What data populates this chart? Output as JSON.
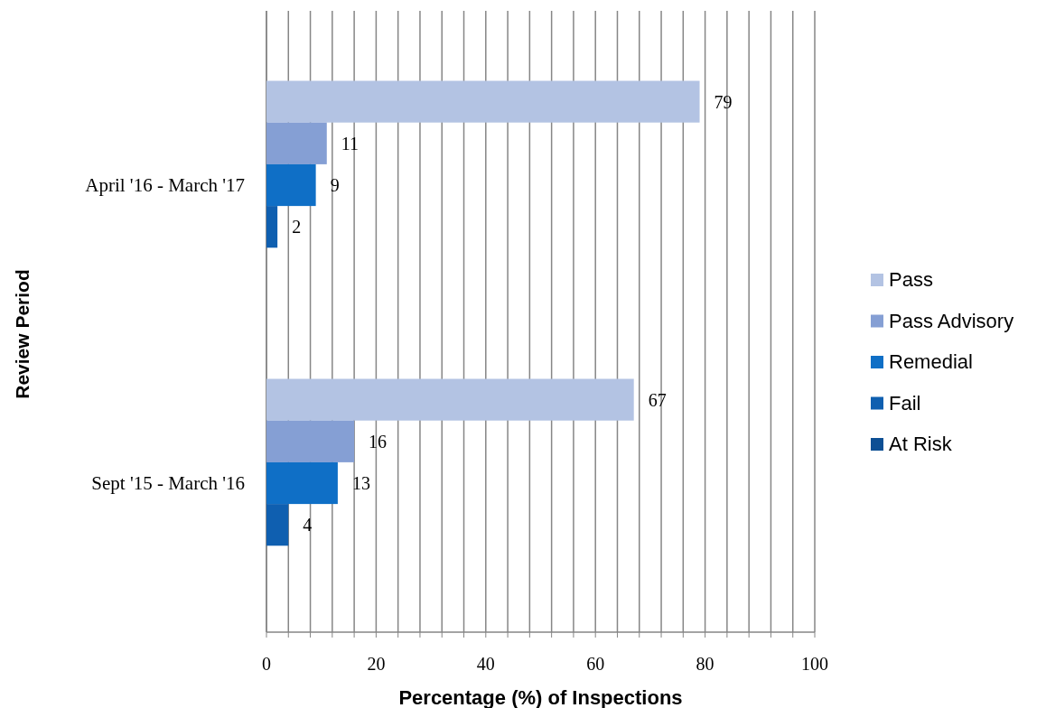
{
  "chart_data": {
    "type": "bar",
    "orientation": "horizontal",
    "xlabel": "Percentage (%) of Inspections",
    "ylabel": "Review Period",
    "categories": [
      "April '16 - March '17",
      "Sept '15 - March '16"
    ],
    "series": [
      {
        "name": "Pass",
        "color": "#b3c3e3",
        "values": [
          79,
          67
        ]
      },
      {
        "name": "Pass Advisory",
        "color": "#859fd4",
        "values": [
          11,
          16
        ]
      },
      {
        "name": "Remedial",
        "color": "#0f6fc6",
        "values": [
          9,
          13
        ]
      },
      {
        "name": "Fail",
        "color": "#0f5fb0",
        "values": [
          2,
          4
        ]
      },
      {
        "name": "At Risk",
        "color": "#0d4f94",
        "values": [
          null,
          null
        ]
      }
    ],
    "xlim": [
      0,
      100
    ],
    "xticks": [
      0,
      {
        "value": 4,
        "label": null
      },
      {
        "value": 8,
        "label": null
      },
      {
        "value": 12,
        "label": null
      },
      {
        "value": 16,
        "label": null
      },
      20,
      {
        "value": 24,
        "label": null
      },
      {
        "value": 28,
        "label": null
      },
      {
        "value": 32,
        "label": null
      },
      {
        "value": 36,
        "label": null
      },
      40,
      {
        "value": 44,
        "label": null
      },
      {
        "value": 48,
        "label": null
      },
      {
        "value": 52,
        "label": null
      },
      {
        "value": 56,
        "label": null
      },
      60,
      {
        "value": 64,
        "label": null
      },
      {
        "value": 68,
        "label": null
      },
      {
        "value": 72,
        "label": null
      },
      {
        "value": 76,
        "label": null
      },
      80,
      {
        "value": 84,
        "label": null
      },
      {
        "value": 88,
        "label": null
      },
      {
        "value": 92,
        "label": null
      },
      {
        "value": 96,
        "label": null
      },
      100
    ],
    "grid": true,
    "data_labels": true,
    "legend": "right"
  }
}
